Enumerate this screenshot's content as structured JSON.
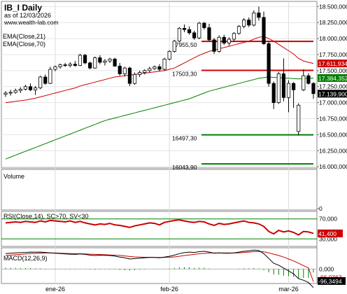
{
  "header": {
    "title": "IB_I Daily",
    "asof": "as of 12/03/2026",
    "site": "www.wealth-lab.com"
  },
  "indicators": {
    "ema21_label": "EMA(Close,21)",
    "ema70_label": "EMA(Close,70)",
    "volume_label": "Volume",
    "rsi_label": "RSI(Close,14), SC>70, SV<30",
    "macd_label": "MACD(12,26,9)"
  },
  "colors": {
    "ema21": "#cc0000",
    "ema70": "#008000",
    "level": "#cc0000",
    "support": "#008000",
    "rsi": "#cc0000",
    "macd": "#000000",
    "signal": "#cc0000",
    "hist": "#008000",
    "last_price_bg": "#000000",
    "ema21_bg": "#cc0000",
    "ema70_bg": "#008000"
  },
  "chart_data": {
    "type": "candlestick",
    "x_ticks": [
      "ene-26",
      "feb-26",
      "mar-26"
    ],
    "y_ticks": [
      "18.500,000",
      "18.250,000",
      "18.000,000",
      "17.750,000",
      "17.500,000",
      "17.250,000",
      "17.000,000",
      "16.750,000",
      "16.500,000",
      "16.250,000",
      "16.000,000"
    ],
    "ylim": [
      15980,
      18580
    ],
    "last_price_label": "17.139,900",
    "ema21_last_label": "17.611,934",
    "ema70_last_label": "17.384,352",
    "levels": [
      {
        "value": 17955.5,
        "label": "17955,50",
        "kind": "resistance"
      },
      {
        "value": 17503.3,
        "label": "17503,30",
        "kind": "resistance"
      },
      {
        "value": 16497.3,
        "label": "16497,30",
        "kind": "support"
      },
      {
        "value": 16043.9,
        "label": "16043,90",
        "kind": "support"
      }
    ],
    "candles": [
      {
        "o": 17130,
        "h": 17180,
        "l": 17090,
        "c": 17150
      },
      {
        "o": 17150,
        "h": 17200,
        "l": 17110,
        "c": 17160
      },
      {
        "o": 17160,
        "h": 17220,
        "l": 17140,
        "c": 17190
      },
      {
        "o": 17190,
        "h": 17240,
        "l": 17150,
        "c": 17210
      },
      {
        "o": 17210,
        "h": 17280,
        "l": 17190,
        "c": 17250
      },
      {
        "o": 17250,
        "h": 17300,
        "l": 17180,
        "c": 17200
      },
      {
        "o": 17200,
        "h": 17260,
        "l": 17120,
        "c": 17230
      },
      {
        "o": 17230,
        "h": 17420,
        "l": 17210,
        "c": 17400
      },
      {
        "o": 17400,
        "h": 17440,
        "l": 17280,
        "c": 17300
      },
      {
        "o": 17300,
        "h": 17560,
        "l": 17290,
        "c": 17520
      },
      {
        "o": 17520,
        "h": 17580,
        "l": 17490,
        "c": 17560
      },
      {
        "o": 17560,
        "h": 17610,
        "l": 17530,
        "c": 17590
      },
      {
        "o": 17590,
        "h": 17620,
        "l": 17560,
        "c": 17580
      },
      {
        "o": 17580,
        "h": 17630,
        "l": 17550,
        "c": 17600
      },
      {
        "o": 17600,
        "h": 17650,
        "l": 17560,
        "c": 17580
      },
      {
        "o": 17580,
        "h": 17760,
        "l": 17570,
        "c": 17740
      },
      {
        "o": 17740,
        "h": 17760,
        "l": 17600,
        "c": 17620
      },
      {
        "o": 17620,
        "h": 17640,
        "l": 17520,
        "c": 17540
      },
      {
        "o": 17540,
        "h": 17720,
        "l": 17530,
        "c": 17700
      },
      {
        "o": 17700,
        "h": 17740,
        "l": 17600,
        "c": 17630
      },
      {
        "o": 17630,
        "h": 17680,
        "l": 17580,
        "c": 17650
      },
      {
        "o": 17650,
        "h": 17700,
        "l": 17620,
        "c": 17680
      },
      {
        "o": 17680,
        "h": 17700,
        "l": 17560,
        "c": 17570
      },
      {
        "o": 17570,
        "h": 17620,
        "l": 17420,
        "c": 17450
      },
      {
        "o": 17450,
        "h": 17560,
        "l": 17410,
        "c": 17540
      },
      {
        "o": 17540,
        "h": 17560,
        "l": 17260,
        "c": 17300
      },
      {
        "o": 17300,
        "h": 17470,
        "l": 17280,
        "c": 17440
      },
      {
        "o": 17440,
        "h": 17500,
        "l": 17400,
        "c": 17470
      },
      {
        "o": 17470,
        "h": 17520,
        "l": 17440,
        "c": 17500
      },
      {
        "o": 17500,
        "h": 17560,
        "l": 17470,
        "c": 17530
      },
      {
        "o": 17530,
        "h": 17580,
        "l": 17510,
        "c": 17560
      },
      {
        "o": 17560,
        "h": 17600,
        "l": 17490,
        "c": 17520
      },
      {
        "o": 17520,
        "h": 17700,
        "l": 17500,
        "c": 17680
      },
      {
        "o": 17680,
        "h": 17820,
        "l": 17660,
        "c": 17800
      },
      {
        "o": 17800,
        "h": 17980,
        "l": 17780,
        "c": 17960
      },
      {
        "o": 17960,
        "h": 18180,
        "l": 17940,
        "c": 18160
      },
      {
        "o": 18160,
        "h": 18220,
        "l": 18100,
        "c": 18140
      },
      {
        "o": 18140,
        "h": 18190,
        "l": 18060,
        "c": 18090
      },
      {
        "o": 18090,
        "h": 18120,
        "l": 17980,
        "c": 18010
      },
      {
        "o": 18010,
        "h": 18260,
        "l": 17990,
        "c": 18240
      },
      {
        "o": 18240,
        "h": 18260,
        "l": 18140,
        "c": 18170
      },
      {
        "o": 18170,
        "h": 18230,
        "l": 17960,
        "c": 17980
      },
      {
        "o": 17980,
        "h": 18010,
        "l": 17760,
        "c": 17800
      },
      {
        "o": 17800,
        "h": 18050,
        "l": 17780,
        "c": 18020
      },
      {
        "o": 18020,
        "h": 18060,
        "l": 17900,
        "c": 17930
      },
      {
        "o": 17930,
        "h": 18020,
        "l": 17890,
        "c": 17990
      },
      {
        "o": 17990,
        "h": 18100,
        "l": 17950,
        "c": 18080
      },
      {
        "o": 18080,
        "h": 18210,
        "l": 18060,
        "c": 18190
      },
      {
        "o": 18190,
        "h": 18320,
        "l": 18160,
        "c": 18290
      },
      {
        "o": 18290,
        "h": 18330,
        "l": 18180,
        "c": 18210
      },
      {
        "o": 18210,
        "h": 18440,
        "l": 18190,
        "c": 18400
      },
      {
        "o": 18400,
        "h": 18500,
        "l": 18280,
        "c": 18330
      },
      {
        "o": 18330,
        "h": 18420,
        "l": 17900,
        "c": 17920
      },
      {
        "o": 17920,
        "h": 17960,
        "l": 17250,
        "c": 17300
      },
      {
        "o": 17300,
        "h": 17330,
        "l": 16900,
        "c": 17000
      },
      {
        "o": 17000,
        "h": 17480,
        "l": 16980,
        "c": 17450
      },
      {
        "o": 17450,
        "h": 17690,
        "l": 17020,
        "c": 17080
      },
      {
        "o": 17080,
        "h": 17350,
        "l": 16850,
        "c": 17300
      },
      {
        "o": 17300,
        "h": 17320,
        "l": 16920,
        "c": 17200
      },
      {
        "o": 16550,
        "h": 16990,
        "l": 16490,
        "c": 16960
      },
      {
        "o": 17200,
        "h": 17520,
        "l": 17180,
        "c": 17420
      },
      {
        "o": 17420,
        "h": 17460,
        "l": 17280,
        "c": 17300
      },
      {
        "o": 17300,
        "h": 17320,
        "l": 17060,
        "c": 17140
      }
    ],
    "ema21": [
      17000,
      17010,
      17020,
      17030,
      17040,
      17055,
      17070,
      17090,
      17110,
      17130,
      17150,
      17170,
      17190,
      17210,
      17230,
      17260,
      17280,
      17300,
      17320,
      17340,
      17360,
      17380,
      17400,
      17410,
      17420,
      17430,
      17440,
      17450,
      17460,
      17470,
      17480,
      17490,
      17500,
      17520,
      17540,
      17580,
      17620,
      17660,
      17700,
      17740,
      17770,
      17800,
      17820,
      17840,
      17860,
      17880,
      17900,
      17920,
      17940,
      17960,
      17990,
      18020,
      18030,
      18000,
      17960,
      17910,
      17860,
      17810,
      17760,
      17690,
      17650,
      17630,
      17612
    ],
    "ema70": [
      16120,
      16150,
      16180,
      16210,
      16240,
      16270,
      16300,
      16330,
      16360,
      16390,
      16420,
      16450,
      16480,
      16510,
      16540,
      16570,
      16600,
      16630,
      16660,
      16690,
      16720,
      16740,
      16760,
      16780,
      16800,
      16820,
      16840,
      16860,
      16880,
      16900,
      16920,
      16940,
      16960,
      16980,
      17000,
      17020,
      17040,
      17060,
      17090,
      17120,
      17150,
      17180,
      17200,
      17220,
      17240,
      17260,
      17280,
      17300,
      17320,
      17340,
      17360,
      17380,
      17390,
      17400,
      17395,
      17390,
      17385,
      17380,
      17375,
      17370,
      17375,
      17380,
      17384
    ],
    "volume_axis_label": "0",
    "rsi": {
      "ylim": [
        15,
        85
      ],
      "ticks": [
        "70,000",
        "30,000"
      ],
      "last_label": "41,400",
      "values": [
        62,
        63,
        64,
        63,
        65,
        64,
        63,
        66,
        64,
        67,
        66,
        65,
        64,
        66,
        63,
        65,
        62,
        60,
        58,
        60,
        59,
        61,
        58,
        57,
        55,
        53,
        56,
        58,
        60,
        62,
        61,
        58,
        63,
        65,
        67,
        68,
        66,
        64,
        63,
        65,
        64,
        60,
        57,
        61,
        59,
        60,
        62,
        64,
        66,
        63,
        62,
        60,
        55,
        45,
        40,
        47,
        44,
        46,
        43,
        38,
        45,
        44,
        41
      ]
    },
    "macd": {
      "ylim": [
        -75,
        110
      ],
      "zero_label": "0,000",
      "macd_last_label": "-96,3494",
      "signal_last_label": "-66,0363",
      "macd": [
        80,
        82,
        84,
        85,
        86,
        88,
        87,
        88,
        86,
        84,
        82,
        80,
        78,
        77,
        76,
        78,
        76,
        72,
        70,
        72,
        71,
        70,
        67,
        62,
        58,
        52,
        54,
        56,
        58,
        60,
        60,
        58,
        62,
        66,
        72,
        80,
        85,
        88,
        86,
        90,
        92,
        88,
        82,
        84,
        82,
        82,
        84,
        88,
        92,
        94,
        98,
        96,
        80,
        55,
        30,
        20,
        5,
        -10,
        -25,
        -50,
        -58,
        -70,
        -96
      ],
      "signal": [
        70,
        72,
        74,
        76,
        78,
        80,
        81,
        82,
        83,
        83,
        83,
        82,
        81,
        80,
        79,
        79,
        78,
        77,
        76,
        75,
        74,
        73,
        72,
        70,
        68,
        65,
        63,
        62,
        61,
        61,
        60,
        60,
        60,
        61,
        63,
        66,
        70,
        73,
        76,
        79,
        81,
        83,
        83,
        83,
        83,
        83,
        83,
        84,
        86,
        88,
        90,
        91,
        89,
        84,
        77,
        70,
        62,
        52,
        42,
        30,
        18,
        6,
        -66
      ]
    }
  }
}
